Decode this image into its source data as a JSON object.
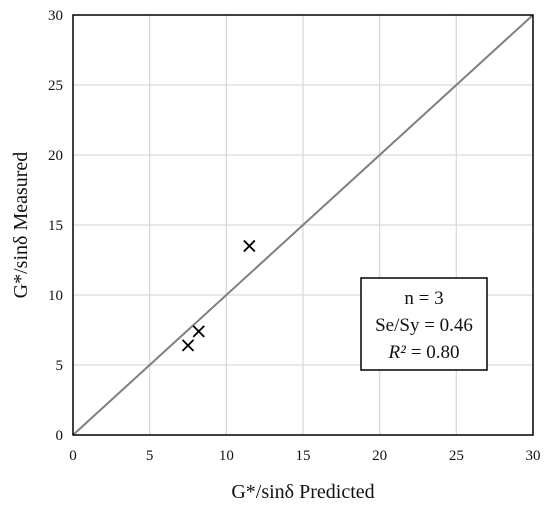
{
  "chart_data": {
    "type": "scatter",
    "title": "",
    "xlabel": "G*/sinδ Predicted",
    "ylabel": "G*/sinδ Measured",
    "xlim": [
      0,
      30
    ],
    "ylim": [
      0,
      30
    ],
    "xticks": [
      0,
      5,
      10,
      15,
      20,
      25,
      30
    ],
    "yticks": [
      0,
      5,
      10,
      15,
      20,
      25,
      30
    ],
    "grid": true,
    "marker": "x",
    "series": [
      {
        "points": [
          {
            "x": 7.5,
            "y": 6.4
          },
          {
            "x": 8.2,
            "y": 7.4
          },
          {
            "x": 11.5,
            "y": 13.5
          }
        ]
      }
    ],
    "reference_line": {
      "type": "line of equality",
      "from": [
        0,
        0
      ],
      "to": [
        30,
        30
      ],
      "color": "#7f7f7f"
    },
    "stats_box": {
      "line1": "n = 3",
      "line2": "Se/Sy = 0.46",
      "r2_symbol": "R²",
      "r2_value": "= 0.80"
    },
    "colors": {
      "grid": "#d9d9d9",
      "axis": "#000000",
      "marker": "#000000",
      "reference": "#7f7f7f"
    }
  }
}
